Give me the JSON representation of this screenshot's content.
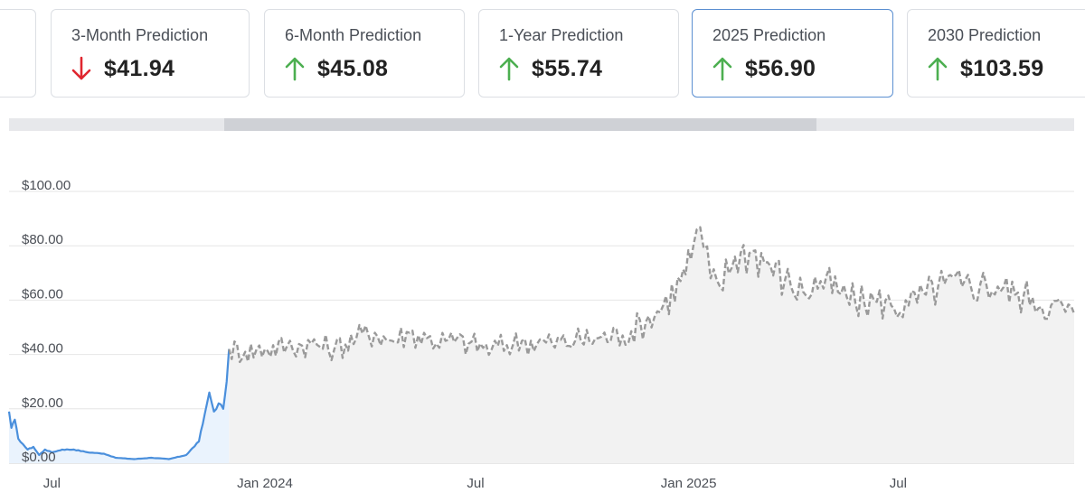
{
  "cards": [
    {
      "label": "",
      "value": "",
      "direction": "none"
    },
    {
      "label": "3-Month Prediction",
      "value": "$41.94",
      "direction": "down"
    },
    {
      "label": "6-Month Prediction",
      "value": "$45.08",
      "direction": "up"
    },
    {
      "label": "1-Year Prediction",
      "value": "$55.74",
      "direction": "up"
    },
    {
      "label": "2025 Prediction",
      "value": "$56.90",
      "direction": "up",
      "selected": true
    },
    {
      "label": "2030 Prediction",
      "value": "$103.59",
      "direction": "up"
    }
  ],
  "colors": {
    "up": "#4caf50",
    "down": "#e0262f",
    "historical_line": "#4a8fdc",
    "prediction_line": "#9a9a9a",
    "historical_fill": "#eaf3fd",
    "prediction_fill": "#f2f2f2",
    "grid": "#e6e6e6"
  },
  "icons": {
    "up": "arrow-up-icon",
    "down": "arrow-down-icon"
  },
  "chart_data": {
    "type": "line",
    "title": "",
    "xlabel": "",
    "ylabel": "",
    "ylim": [
      0,
      100
    ],
    "xlim": [
      "2023-05-25",
      "2025-11-30"
    ],
    "y_ticks": [
      {
        "value": 0,
        "label": "$0.00"
      },
      {
        "value": 20,
        "label": "$20.00"
      },
      {
        "value": 40,
        "label": "$40.00"
      },
      {
        "value": 60,
        "label": "$60.00"
      },
      {
        "value": 80,
        "label": "$80.00"
      },
      {
        "value": 100,
        "label": "$100.00"
      }
    ],
    "x_ticks": [
      {
        "date": "2023-07-01",
        "label": "Jul"
      },
      {
        "date": "2024-01-01",
        "label": "Jan 2024"
      },
      {
        "date": "2024-07-01",
        "label": "Jul"
      },
      {
        "date": "2025-01-01",
        "label": "Jan 2025"
      },
      {
        "date": "2025-07-01",
        "label": "Jul"
      }
    ],
    "grid": true,
    "series": [
      {
        "style": "solid",
        "points": [
          [
            "2023-05-25",
            19
          ],
          [
            "2023-05-27",
            13
          ],
          [
            "2023-05-30",
            16
          ],
          [
            "2023-06-02",
            9
          ],
          [
            "2023-06-06",
            7
          ],
          [
            "2023-06-10",
            5
          ],
          [
            "2023-06-15",
            6
          ],
          [
            "2023-06-20",
            3
          ],
          [
            "2023-06-25",
            5
          ],
          [
            "2023-07-01",
            4
          ],
          [
            "2023-07-10",
            5
          ],
          [
            "2023-07-20",
            5
          ],
          [
            "2023-08-01",
            4
          ],
          [
            "2023-08-15",
            3.5
          ],
          [
            "2023-08-25",
            2
          ],
          [
            "2023-09-10",
            1.5
          ],
          [
            "2023-09-25",
            2
          ],
          [
            "2023-10-10",
            1.5
          ],
          [
            "2023-10-25",
            3
          ],
          [
            "2023-11-05",
            8
          ],
          [
            "2023-11-10",
            18
          ],
          [
            "2023-11-14",
            26
          ],
          [
            "2023-11-18",
            19
          ],
          [
            "2023-11-22",
            22
          ],
          [
            "2023-11-26",
            20
          ],
          [
            "2023-11-29",
            30
          ],
          [
            "2023-12-01",
            42
          ]
        ]
      },
      {
        "style": "dashed",
        "points": [
          [
            "2023-12-01",
            42
          ],
          [
            "2023-12-15",
            41
          ],
          [
            "2024-01-01",
            42
          ],
          [
            "2024-01-20",
            43
          ],
          [
            "2024-02-10",
            44
          ],
          [
            "2024-03-01",
            42
          ],
          [
            "2024-03-20",
            46
          ],
          [
            "2024-04-05",
            48
          ],
          [
            "2024-04-20",
            45
          ],
          [
            "2024-05-05",
            48
          ],
          [
            "2024-05-20",
            46
          ],
          [
            "2024-06-05",
            45
          ],
          [
            "2024-06-25",
            44
          ],
          [
            "2024-07-15",
            42
          ],
          [
            "2024-08-10",
            45
          ],
          [
            "2024-09-05",
            44
          ],
          [
            "2024-09-25",
            45
          ],
          [
            "2024-10-15",
            46
          ],
          [
            "2024-11-05",
            47
          ],
          [
            "2024-11-25",
            52
          ],
          [
            "2024-12-10",
            58
          ],
          [
            "2024-12-25",
            67
          ],
          [
            "2025-01-03",
            75
          ],
          [
            "2025-01-08",
            86
          ],
          [
            "2025-01-14",
            79
          ],
          [
            "2025-01-20",
            68
          ],
          [
            "2025-01-28",
            65
          ],
          [
            "2025-02-10",
            76
          ],
          [
            "2025-02-25",
            78
          ],
          [
            "2025-03-10",
            74
          ],
          [
            "2025-03-25",
            67
          ],
          [
            "2025-04-10",
            63
          ],
          [
            "2025-04-25",
            67
          ],
          [
            "2025-05-10",
            63
          ],
          [
            "2025-05-25",
            59
          ],
          [
            "2025-06-10",
            60
          ],
          [
            "2025-06-25",
            58
          ],
          [
            "2025-07-10",
            58
          ],
          [
            "2025-07-25",
            62
          ],
          [
            "2025-08-10",
            66
          ],
          [
            "2025-08-25",
            65
          ],
          [
            "2025-09-10",
            66
          ],
          [
            "2025-09-25",
            65
          ],
          [
            "2025-10-10",
            62
          ],
          [
            "2025-10-25",
            61
          ],
          [
            "2025-11-10",
            58
          ],
          [
            "2025-11-30",
            55
          ]
        ]
      }
    ]
  }
}
